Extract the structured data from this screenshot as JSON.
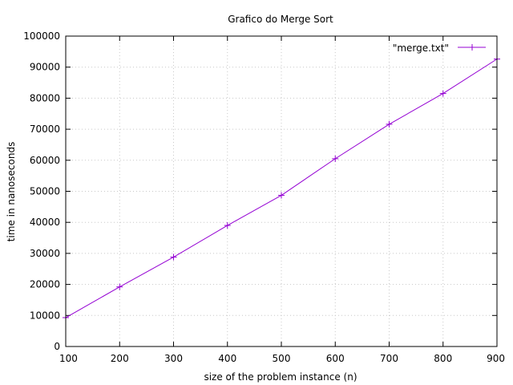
{
  "chart_data": {
    "type": "line",
    "title": "Grafico do Merge Sort",
    "xlabel": "size of the problem instance (n)",
    "ylabel": "time in nanoseconds",
    "xlim": [
      100,
      900
    ],
    "ylim": [
      0,
      100000
    ],
    "xticks": [
      100,
      200,
      300,
      400,
      500,
      600,
      700,
      800,
      900
    ],
    "yticks": [
      0,
      10000,
      20000,
      30000,
      40000,
      50000,
      60000,
      70000,
      80000,
      90000,
      100000
    ],
    "grid": true,
    "legend_position": "top-right",
    "series": [
      {
        "name": "\"merge.txt\"",
        "color": "#9400d3",
        "marker": "plus",
        "x": [
          100,
          200,
          300,
          400,
          500,
          600,
          700,
          800,
          900
        ],
        "y": [
          9300,
          19200,
          28800,
          39000,
          48700,
          60500,
          71600,
          81500,
          92600
        ]
      }
    ]
  }
}
